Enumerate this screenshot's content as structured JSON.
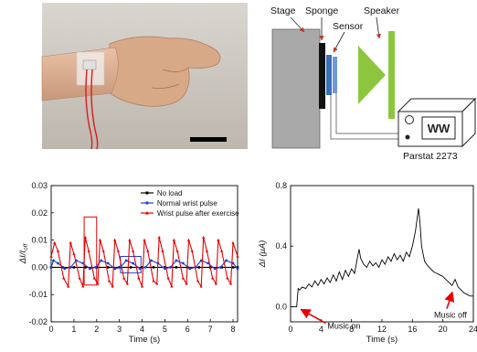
{
  "panel_b": {
    "labels": {
      "stage": "Stage",
      "sponge": "Sponge",
      "sensor": "Sensor",
      "speaker": "Speaker",
      "instrument": "Parstat 2273",
      "display": "WW"
    },
    "colors": {
      "stage": "#a9a9a9",
      "sponge": "#111111",
      "sensor": "#3b6fb6",
      "speaker": "#8cc63f",
      "wire": "#777777"
    }
  },
  "chart_data": [
    {
      "type": "line",
      "xlabel": "Time (s)",
      "ylabel": "ΔI/I",
      "ylabel_sub": "off",
      "xlim": [
        0,
        8.2
      ],
      "ylim": [
        -0.02,
        0.03
      ],
      "xticks": [
        0,
        1,
        2,
        3,
        4,
        5,
        6,
        7,
        8
      ],
      "yticks": [
        -0.02,
        -0.01,
        0.0,
        0.01,
        0.02,
        0.03
      ],
      "ytick_labels": [
        "-0.02",
        "-0.01",
        "0.00",
        "0.01",
        "0.02",
        "0.03"
      ],
      "legend_position": "top-right",
      "series": [
        {
          "name": "No load",
          "color": "#000000",
          "marker": "square",
          "x": [
            0,
            0.5,
            1,
            1.5,
            2,
            2.5,
            3,
            3.5,
            4,
            4.5,
            5,
            5.5,
            6,
            6.5,
            7,
            7.5,
            8,
            8.2
          ],
          "y": [
            0,
            0,
            0,
            0,
            0,
            0,
            0,
            0,
            0,
            0,
            0,
            0,
            0,
            0,
            0,
            0,
            0,
            0
          ]
        },
        {
          "name": "Normal wrist pulse",
          "color": "#1f3fd6",
          "marker": "circle",
          "x": [
            0,
            0.1,
            0.3,
            0.6,
            0.85,
            1.1,
            1.4,
            1.7,
            1.95,
            2.2,
            2.5,
            2.8,
            3.05,
            3.3,
            3.6,
            3.9,
            4.15,
            4.4,
            4.7,
            5.0,
            5.25,
            5.5,
            5.8,
            6.1,
            6.35,
            6.6,
            6.9,
            7.2,
            7.45,
            7.7,
            8.0,
            8.2
          ],
          "y": [
            0.0,
            0.0025,
            0.0015,
            -0.0005,
            0.0,
            0.0025,
            0.0015,
            -0.0005,
            0.0,
            0.0025,
            0.0015,
            -0.0005,
            0.0,
            0.0025,
            0.0015,
            -0.0005,
            0.0,
            0.0025,
            0.0015,
            -0.0005,
            0.0,
            0.0025,
            0.0015,
            -0.0005,
            0.0,
            0.0025,
            0.0015,
            -0.0005,
            0.0,
            0.0025,
            0.0015,
            -0.0005
          ]
        },
        {
          "name": "Wrist pulse after exercise",
          "color": "#e60000",
          "marker": "triangle",
          "x": [
            0,
            0.15,
            0.3,
            0.55,
            0.75,
            0.85,
            1.0,
            1.25,
            1.4,
            1.5,
            1.65,
            1.9,
            2.05,
            2.15,
            2.3,
            2.55,
            2.7,
            2.8,
            2.95,
            3.2,
            3.35,
            3.45,
            3.6,
            3.85,
            4.0,
            4.1,
            4.25,
            4.5,
            4.65,
            4.75,
            4.9,
            5.15,
            5.3,
            5.4,
            5.55,
            5.8,
            5.95,
            6.05,
            6.2,
            6.45,
            6.6,
            6.7,
            6.85,
            7.1,
            7.25,
            7.35,
            7.5,
            7.75,
            7.9,
            8.0,
            8.2
          ],
          "y": [
            0.004,
            0.009,
            0.006,
            -0.004,
            -0.007,
            0.009,
            0.005,
            -0.004,
            -0.007,
            0.011,
            0.006,
            -0.004,
            -0.006,
            0.01,
            0.006,
            -0.005,
            -0.007,
            0.01,
            0.006,
            -0.004,
            -0.006,
            0.01,
            0.006,
            -0.004,
            -0.007,
            0.01,
            0.006,
            -0.005,
            -0.006,
            0.011,
            0.006,
            -0.004,
            -0.007,
            0.01,
            0.006,
            -0.004,
            -0.006,
            0.01,
            0.006,
            -0.005,
            -0.007,
            0.011,
            0.006,
            -0.004,
            -0.006,
            0.01,
            0.006,
            -0.004,
            -0.006,
            0.009,
            0.004
          ]
        }
      ],
      "highlight_boxes": [
        {
          "color": "#e60000",
          "x0": 1.45,
          "x1": 2.0,
          "y0": -0.0065,
          "y1": 0.0185
        },
        {
          "color": "#1f3fd6",
          "x0": 3.05,
          "x1": 3.95,
          "y0": -0.002,
          "y1": 0.004
        }
      ]
    },
    {
      "type": "line",
      "xlabel": "Time (s)",
      "ylabel": "ΔI (μA)",
      "xlim": [
        0,
        24
      ],
      "ylim": [
        -0.1,
        0.8
      ],
      "xticks": [
        0,
        4,
        8,
        12,
        16,
        20,
        24
      ],
      "yticks": [
        0.0,
        0.4,
        0.8
      ],
      "ytick_labels": [
        "0.0",
        "0.4",
        "0.8"
      ],
      "series": [
        {
          "color": "#000000",
          "x": [
            0,
            0.8,
            1.0,
            1.2,
            1.5,
            2.0,
            2.4,
            2.8,
            3.2,
            3.6,
            4.0,
            4.4,
            4.8,
            5.2,
            5.6,
            6.0,
            6.4,
            6.8,
            7.2,
            7.6,
            8.0,
            8.4,
            8.8,
            9.0,
            9.2,
            9.6,
            10.0,
            10.4,
            10.8,
            11.2,
            11.6,
            12.0,
            12.4,
            12.8,
            13.2,
            13.6,
            14.0,
            14.4,
            14.8,
            15.2,
            15.6,
            16.0,
            16.4,
            16.8,
            17.0,
            17.2,
            17.6,
            18.0,
            18.4,
            18.8,
            19.2,
            19.6,
            20.0,
            20.4,
            20.8,
            21.2,
            21.6,
            22.0,
            22.4,
            22.8,
            23.2,
            23.6,
            24.0
          ],
          "y": [
            0.0,
            0.0,
            0.12,
            0.11,
            0.13,
            0.12,
            0.15,
            0.13,
            0.17,
            0.14,
            0.18,
            0.15,
            0.19,
            0.16,
            0.21,
            0.17,
            0.23,
            0.18,
            0.24,
            0.2,
            0.25,
            0.22,
            0.33,
            0.38,
            0.32,
            0.28,
            0.26,
            0.3,
            0.27,
            0.29,
            0.26,
            0.31,
            0.28,
            0.33,
            0.3,
            0.35,
            0.31,
            0.34,
            0.3,
            0.36,
            0.33,
            0.4,
            0.5,
            0.65,
            0.55,
            0.4,
            0.3,
            0.27,
            0.25,
            0.23,
            0.22,
            0.21,
            0.2,
            0.18,
            0.16,
            0.14,
            0.18,
            0.13,
            0.11,
            0.09,
            0.08,
            0.07,
            0.07
          ]
        }
      ],
      "annotations": [
        {
          "text": "Music on",
          "x": 1,
          "y": 0
        },
        {
          "text": "Music off",
          "x": 21,
          "y": 0.12
        }
      ]
    }
  ]
}
